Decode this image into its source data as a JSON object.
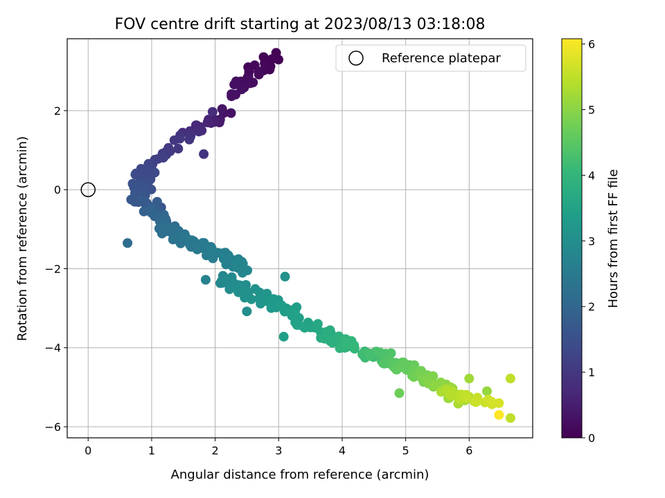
{
  "chart_data": {
    "type": "scatter",
    "title": "FOV centre drift starting at 2023/08/13 03:18:08",
    "xlabel": "Angular distance from reference (arcmin)",
    "ylabel": "Rotation from reference (arcmin)",
    "xlim": [
      -0.33,
      7.0
    ],
    "ylim": [
      -6.28,
      3.82
    ],
    "x_ticks": [
      0,
      1,
      2,
      3,
      4,
      5,
      6
    ],
    "y_ticks": [
      -6,
      -4,
      -2,
      0,
      2
    ],
    "x_tick_labels": [
      "0",
      "1",
      "2",
      "3",
      "4",
      "5",
      "6"
    ],
    "y_tick_labels": [
      "−6",
      "−4",
      "−2",
      "0",
      "2"
    ],
    "grid": true,
    "legend": {
      "position": "upper-right",
      "label": "Reference platepar"
    },
    "reference_point": {
      "x": 0,
      "y": 0,
      "marker": "open-circle"
    },
    "colorbar": {
      "label": "Hours from first FF file",
      "min": 0,
      "max": 6.08,
      "ticks": [
        0,
        1,
        2,
        3,
        4,
        5,
        6
      ],
      "tick_labels": [
        "0",
        "1",
        "2",
        "3",
        "4",
        "5",
        "6"
      ],
      "colormap": "viridis",
      "stops": [
        "#440154",
        "#482878",
        "#3e4989",
        "#31688e",
        "#26828e",
        "#1f9e89",
        "#35b779",
        "#6ece58",
        "#b5de2b",
        "#fde725"
      ]
    },
    "segments": [
      {
        "x0": 2.95,
        "y0": 3.35,
        "x1": 2.2,
        "y1": 2.45,
        "t0": 0.0,
        "t1": 0.3,
        "n": 26,
        "jx": 0.3,
        "jy": 0.3
      },
      {
        "x0": 2.2,
        "y0": 2.0,
        "x1": 1.4,
        "y1": 1.2,
        "t0": 0.3,
        "t1": 1.0,
        "n": 24,
        "jx": 0.25,
        "jy": 0.25
      },
      {
        "x0": 1.4,
        "y0": 1.0,
        "x1": 0.85,
        "y1": 0.5,
        "t0": 1.0,
        "t1": 1.3,
        "n": 18,
        "jx": 0.25,
        "jy": 0.2
      },
      {
        "x0": 0.9,
        "y0": 0.5,
        "x1": 0.8,
        "y1": -0.3,
        "t0": 1.3,
        "t1": 1.7,
        "n": 32,
        "jx": 0.35,
        "jy": 0.3
      },
      {
        "x0": 0.9,
        "y0": -0.3,
        "x1": 1.3,
        "y1": -1.1,
        "t0": 1.7,
        "t1": 2.2,
        "n": 22,
        "jx": 0.3,
        "jy": 0.25
      },
      {
        "x0": 1.2,
        "y0": -1.0,
        "x1": 2.5,
        "y1": -2.0,
        "t0": 2.2,
        "t1": 2.8,
        "n": 58,
        "jx": 0.2,
        "jy": 0.25
      },
      {
        "x0": 2.1,
        "y0": -2.2,
        "x1": 3.4,
        "y1": -3.3,
        "t0": 2.8,
        "t1": 3.5,
        "n": 48,
        "jx": 0.25,
        "jy": 0.3
      },
      {
        "x0": 3.4,
        "y0": -3.4,
        "x1": 4.6,
        "y1": -4.3,
        "t0": 3.5,
        "t1": 4.3,
        "n": 44,
        "jx": 0.25,
        "jy": 0.3
      },
      {
        "x0": 4.6,
        "y0": -4.2,
        "x1": 5.9,
        "y1": -5.3,
        "t0": 4.3,
        "t1": 5.3,
        "n": 72,
        "jx": 0.2,
        "jy": 0.28
      },
      {
        "x0": 5.5,
        "y0": -5.1,
        "x1": 6.45,
        "y1": -5.4,
        "t0": 5.3,
        "t1": 5.7,
        "n": 20,
        "jx": 0.2,
        "jy": 0.2
      }
    ],
    "extra_points": [
      {
        "x": 0.62,
        "y": -1.35,
        "t": 2.15
      },
      {
        "x": 1.85,
        "y": -2.28,
        "t": 2.7
      },
      {
        "x": 2.5,
        "y": -3.08,
        "t": 3.0
      },
      {
        "x": 3.08,
        "y": -3.72,
        "t": 3.4
      },
      {
        "x": 3.1,
        "y": -2.2,
        "t": 3.1
      },
      {
        "x": 4.9,
        "y": -5.15,
        "t": 4.7
      },
      {
        "x": 6.65,
        "y": -4.78,
        "t": 5.5
      },
      {
        "x": 6.65,
        "y": -5.78,
        "t": 5.5
      },
      {
        "x": 6.47,
        "y": -5.7,
        "t": 6.08
      },
      {
        "x": 6.0,
        "y": -4.78,
        "t": 5.2
      },
      {
        "x": 6.28,
        "y": -5.1,
        "t": 5.1
      },
      {
        "x": 2.96,
        "y": 3.35,
        "t": 0.0
      },
      {
        "x": 2.78,
        "y": 3.2,
        "t": 0.05
      },
      {
        "x": 2.52,
        "y": 3.1,
        "t": 0.05
      },
      {
        "x": 1.96,
        "y": 1.97,
        "t": 0.8
      },
      {
        "x": 1.82,
        "y": 0.9,
        "t": 0.95
      },
      {
        "x": 1.15,
        "y": -0.45,
        "t": 1.6
      }
    ]
  }
}
